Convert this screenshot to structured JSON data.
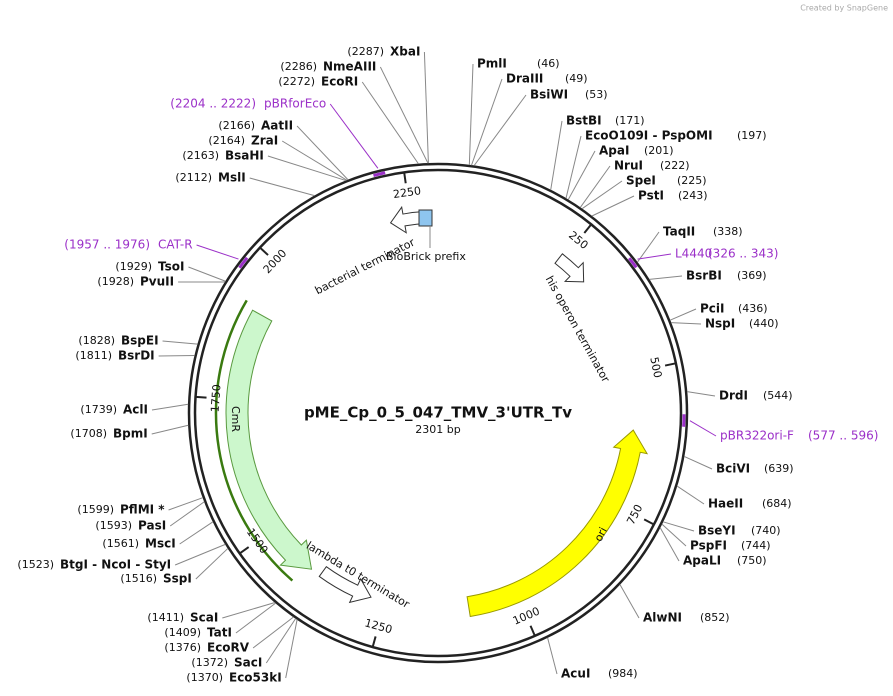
{
  "watermark": "Created by SnapGene",
  "plasmid": {
    "name": "pME_Cp_0_5_047_TMV_3'UTR_Tv",
    "length": "2301 bp"
  },
  "ruler": [
    "250",
    "500",
    "750",
    "1000",
    "1250",
    "1500",
    "1750",
    "2000",
    "2250"
  ],
  "features": [
    "bacterial terminator",
    "BioBrick prefix",
    "his operon terminator",
    "CmR",
    "lambda t0 terminator",
    "ori"
  ],
  "sites": [
    {
      "name": "PmlI",
      "position": "(46)"
    },
    {
      "name": "DraIII",
      "position": "(49)"
    },
    {
      "name": "BsiWI",
      "position": "(53)"
    },
    {
      "name": "BstBI",
      "position": "(171)"
    },
    {
      "name": "EcoO109I - PspOMI",
      "position": "(197)"
    },
    {
      "name": "ApaI",
      "position": "(201)"
    },
    {
      "name": "NruI",
      "position": "(222)"
    },
    {
      "name": "SpeI",
      "position": "(225)"
    },
    {
      "name": "PstI",
      "position": "(243)"
    },
    {
      "name": "TaqII",
      "position": "(338)"
    },
    {
      "name": "BsrBI",
      "position": "(369)"
    },
    {
      "name": "PciI",
      "position": "(436)"
    },
    {
      "name": "NspI",
      "position": "(440)"
    },
    {
      "name": "DrdI",
      "position": "(544)"
    },
    {
      "name": "BciVI",
      "position": "(639)"
    },
    {
      "name": "HaeII",
      "position": "(684)"
    },
    {
      "name": "BseYI",
      "position": "(740)"
    },
    {
      "name": "PspFI",
      "position": "(744)"
    },
    {
      "name": "ApaLI",
      "position": "(750)"
    },
    {
      "name": "AlwNI",
      "position": "(852)"
    },
    {
      "name": "AcuI",
      "position": "(984)"
    },
    {
      "name": "XbaI",
      "position": "(2287)"
    },
    {
      "name": "NmeAIII",
      "position": "(2286)"
    },
    {
      "name": "EcoRI",
      "position": "(2272)"
    },
    {
      "name": "AatII",
      "position": "(2166)"
    },
    {
      "name": "ZraI",
      "position": "(2164)"
    },
    {
      "name": "BsaHI",
      "position": "(2163)"
    },
    {
      "name": "MslI",
      "position": "(2112)"
    },
    {
      "name": "TsoI",
      "position": "(1929)"
    },
    {
      "name": "PvuII",
      "position": "(1928)"
    },
    {
      "name": "BspEI",
      "position": "(1828)"
    },
    {
      "name": "BsrDI",
      "position": "(1811)"
    },
    {
      "name": "AclI",
      "position": "(1739)"
    },
    {
      "name": "BpmI",
      "position": "(1708)"
    },
    {
      "name": "PflMI *",
      "position": "(1599)"
    },
    {
      "name": "PasI",
      "position": "(1593)"
    },
    {
      "name": "MscI",
      "position": "(1561)"
    },
    {
      "name": "BtgI - NcoI - StyI",
      "position": "(1523)"
    },
    {
      "name": "SspI",
      "position": "(1516)"
    },
    {
      "name": "ScaI",
      "position": "(1411)"
    },
    {
      "name": "TatI",
      "position": "(1409)"
    },
    {
      "name": "EcoRV",
      "position": "(1376)"
    },
    {
      "name": "SacI",
      "position": "(1372)"
    },
    {
      "name": "Eco53kI",
      "position": "(1370)"
    }
  ],
  "primers": [
    {
      "name": "pBRforEco",
      "range": "(2204 .. 2222)"
    },
    {
      "name": "CAT-R",
      "range": "(1957 .. 1976)"
    },
    {
      "name": "L4440",
      "range": "(326 .. 343)"
    },
    {
      "name": "pBR322ori-F",
      "range": "(577 .. 596)"
    }
  ]
}
